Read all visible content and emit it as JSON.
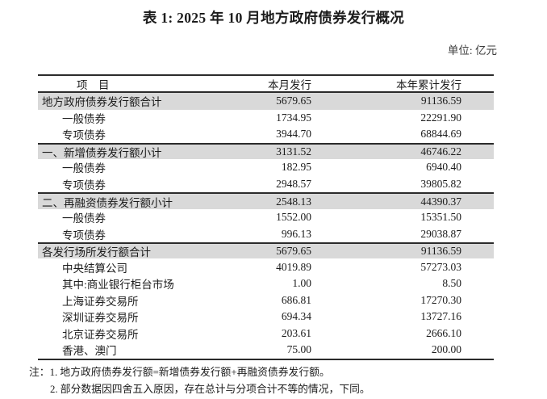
{
  "title": "表 1: 2025 年 10 月地方政府债券发行概况",
  "unit_label": "单位: 亿元",
  "colors": {
    "text": "#1c1c1c",
    "unit_text": "#3d3d3d",
    "rule": "#2b2b2b",
    "row_shade": "#d9d9d9"
  },
  "table": {
    "columns": [
      "项　目",
      "本月发行",
      "本年累计发行"
    ],
    "rows": [
      {
        "label": "地方政府债券发行额合计",
        "month": "5679.65",
        "ytd": "91136.59",
        "level": "section"
      },
      {
        "label": "一般债券",
        "month": "1734.95",
        "ytd": "22291.90",
        "level": "sub"
      },
      {
        "label": "专项债券",
        "month": "3944.70",
        "ytd": "68844.69",
        "level": "sub"
      },
      {
        "label": "一、新增债券发行额小计",
        "month": "3131.52",
        "ytd": "46746.22",
        "level": "section"
      },
      {
        "label": "一般债券",
        "month": "182.95",
        "ytd": "6940.40",
        "level": "sub"
      },
      {
        "label": "专项债券",
        "month": "2948.57",
        "ytd": "39805.82",
        "level": "sub"
      },
      {
        "label": "二、再融资债券发行额小计",
        "month": "2548.13",
        "ytd": "44390.37",
        "level": "section"
      },
      {
        "label": "一般债券",
        "month": "1552.00",
        "ytd": "15351.50",
        "level": "sub"
      },
      {
        "label": "专项债券",
        "month": "996.13",
        "ytd": "29038.87",
        "level": "sub"
      },
      {
        "label": "各发行场所发行额合计",
        "month": "5679.65",
        "ytd": "91136.59",
        "level": "section"
      },
      {
        "label": "中央结算公司",
        "month": "4019.89",
        "ytd": "57273.03",
        "level": "sub"
      },
      {
        "label": "其中:商业银行柜台市场",
        "month": "1.00",
        "ytd": "8.50",
        "level": "sub"
      },
      {
        "label": "上海证券交易所",
        "month": "686.81",
        "ytd": "17270.30",
        "level": "sub"
      },
      {
        "label": "深圳证券交易所",
        "month": "694.34",
        "ytd": "13727.16",
        "level": "sub"
      },
      {
        "label": "北京证券交易所",
        "month": "203.61",
        "ytd": "2666.10",
        "level": "sub"
      },
      {
        "label": "香港、澳门",
        "month": "75.00",
        "ytd": "200.00",
        "level": "sub"
      }
    ]
  },
  "notes": {
    "prefix": "注：",
    "items": [
      "1. 地方政府债券发行额=新增债券发行额+再融资债券发行额。",
      "2. 部分数据因四舍五入原因，存在总计与分项合计不等的情况，下同。"
    ]
  }
}
